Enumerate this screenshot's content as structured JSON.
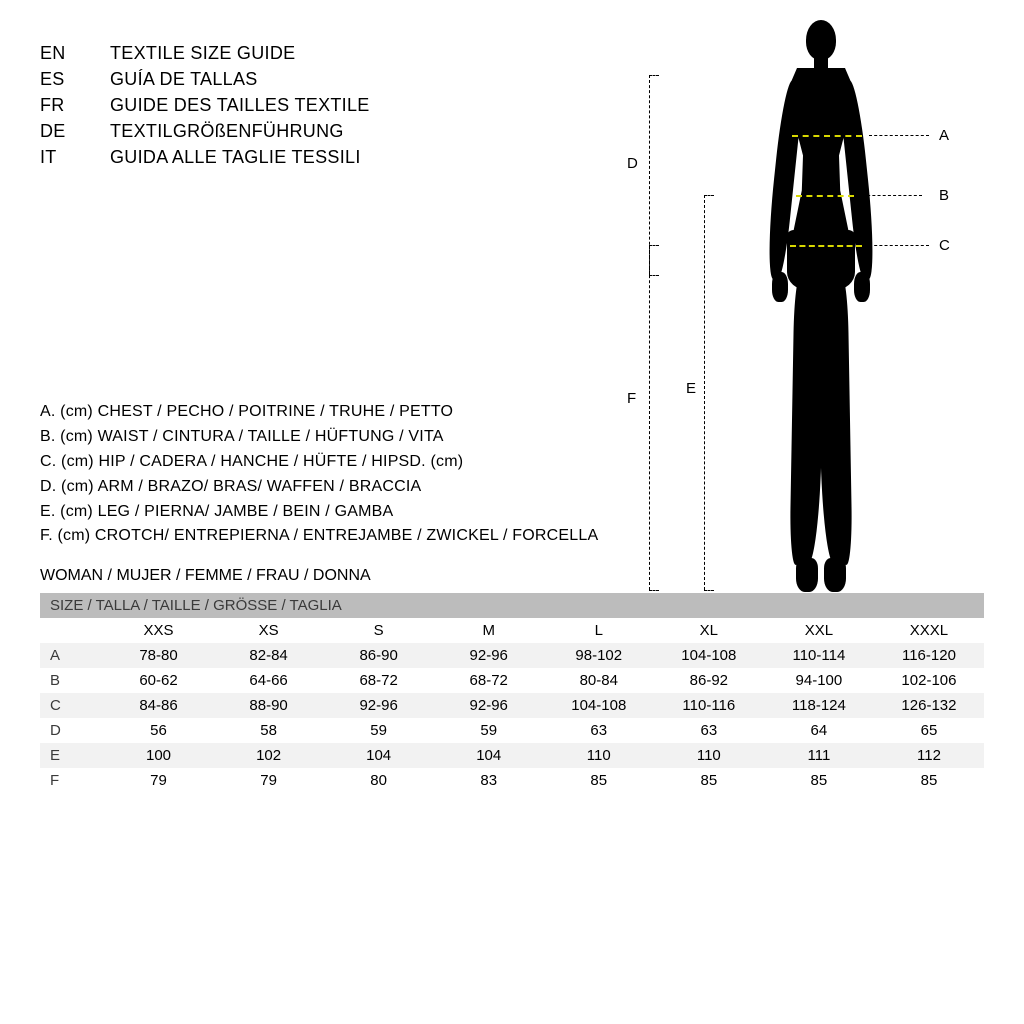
{
  "colors": {
    "background": "#ffffff",
    "text": "#000000",
    "header_bg": "#bcbcbc",
    "header_text": "#3a3a3a",
    "stripe": "#f2f2f2",
    "measure_line": "#d8d800"
  },
  "fonts": {
    "family": "Arial Narrow, Arial, sans-serif",
    "lang_size_pt": 14,
    "body_size_pt": 12,
    "table_size_pt": 11
  },
  "languages": [
    {
      "code": "EN",
      "text": "TEXTILE SIZE GUIDE"
    },
    {
      "code": "ES",
      "text": "GUÍA DE TALLAS"
    },
    {
      "code": "FR",
      "text": "GUIDE DES TAILLES TEXTILE"
    },
    {
      "code": "DE",
      "text": "TEXTILGRÖßENFÜHRUNG"
    },
    {
      "code": "IT",
      "text": "GUIDA ALLE TAGLIE TESSILI"
    }
  ],
  "measurements": [
    "A. (cm) CHEST / PECHO / POITRINE / TRUHE / PETTO",
    "B. (cm) WAIST / CINTURA / TAILLE / HÜFTUNG / VITA",
    "C. (cm) HIP / CADERA / HANCHE / HÜFTE / HIPSD. (cm)",
    "D. (cm) ARM / BRAZO/ BRAS/ WAFFEN / BRACCIA",
    "E. (cm) LEG / PIERNA/ JAMBE / BEIN / GAMBA",
    "F. (cm) CROTCH/ ENTREPIERNA / ENTREJAMBE / ZWICKEL / FORCELLA"
  ],
  "section_label": "WOMAN / MUJER / FEMME / FRAU / DONNA",
  "table": {
    "header": "SIZE / TALLA / TAILLE / GRÖSSE / TAGLIA",
    "columns": [
      "",
      "XXS",
      "XS",
      "S",
      "M",
      "L",
      "XL",
      "XXL",
      "XXXL"
    ],
    "rows": [
      [
        "A",
        "78-80",
        "82-84",
        "86-90",
        "92-96",
        "98-102",
        "104-108",
        "110-114",
        "116-120"
      ],
      [
        "B",
        "60-62",
        "64-66",
        "68-72",
        "68-72",
        "80-84",
        "86-92",
        "94-100",
        "102-106"
      ],
      [
        "C",
        "84-86",
        "88-90",
        "92-96",
        "92-96",
        "104-108",
        "110-116",
        "118-124",
        "126-132"
      ],
      [
        "D",
        "56",
        "58",
        "59",
        "59",
        "63",
        "63",
        "64",
        "65"
      ],
      [
        "E",
        "100",
        "102",
        "104",
        "104",
        "110",
        "110",
        "111",
        "112"
      ],
      [
        "F",
        "79",
        "79",
        "80",
        "83",
        "85",
        "85",
        "85",
        "85"
      ]
    ]
  },
  "figure_labels": {
    "A": "A",
    "B": "B",
    "C": "C",
    "D": "D",
    "E": "E",
    "F": "F"
  }
}
